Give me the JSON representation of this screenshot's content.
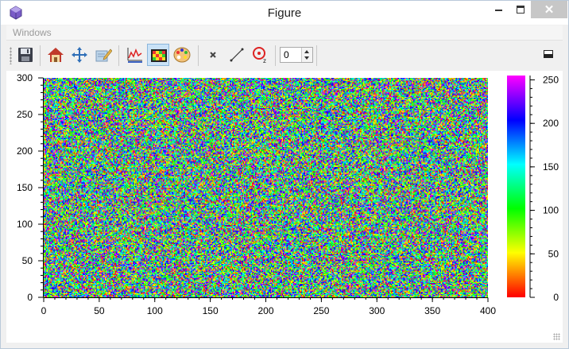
{
  "window": {
    "title": "Figure"
  },
  "menu": {
    "items": [
      "Windows"
    ]
  },
  "toolbar": {
    "spin_value": "0",
    "buttons": [
      {
        "icon": "save-icon"
      },
      {
        "icon": "home-icon"
      },
      {
        "icon": "pan-icon"
      },
      {
        "icon": "edit-icon"
      },
      {
        "icon": "curve-params-icon"
      },
      {
        "icon": "image-params-icon"
      },
      {
        "icon": "colormap-icon"
      },
      {
        "icon": "clear-marker-icon"
      },
      {
        "icon": "line-icon"
      },
      {
        "icon": "zoom-target-icon"
      }
    ]
  },
  "chart_data": {
    "type": "heatmap",
    "description_of_values": "uniform random noise",
    "x_range": [
      0,
      400
    ],
    "y_range": [
      0,
      300
    ],
    "x_ticks": [
      0,
      50,
      100,
      150,
      200,
      250,
      300,
      350,
      400
    ],
    "y_ticks": [
      0,
      50,
      100,
      150,
      200,
      250,
      300
    ],
    "colorbar": {
      "range": [
        0,
        255
      ],
      "ticks": [
        0,
        50,
        100,
        150,
        200,
        250
      ],
      "colormap": [
        "#ff0000",
        "#ffff00",
        "#00ff00",
        "#00ffff",
        "#0000ff",
        "#ff00ff"
      ]
    },
    "grid": false
  }
}
